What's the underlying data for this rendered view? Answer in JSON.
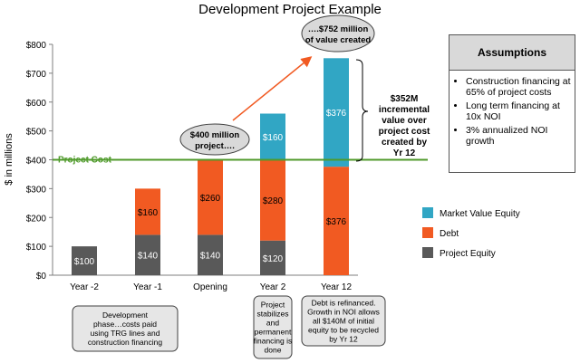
{
  "chart_data": {
    "type": "bar",
    "stacked": true,
    "title": "Development Project Example",
    "ylabel": "$ in millions",
    "ylim": [
      0,
      800
    ],
    "yticks": [
      0,
      100,
      200,
      300,
      400,
      500,
      600,
      700,
      800
    ],
    "ytick_labels": [
      "$0",
      "$100",
      "$200",
      "$300",
      "$400",
      "$500",
      "$600",
      "$700",
      "$800"
    ],
    "categories": [
      "Year -2",
      "Year -1",
      "Opening",
      "Year 2",
      "Year 12"
    ],
    "series": [
      {
        "name": "Project Equity",
        "color": "#595959",
        "values": [
          100,
          140,
          140,
          120,
          0
        ],
        "labels": [
          "$100",
          "$140",
          "$140",
          "$120",
          ""
        ]
      },
      {
        "name": "Debt",
        "color": "#f15a22",
        "values": [
          0,
          160,
          260,
          280,
          376
        ],
        "labels": [
          "",
          "$160",
          "$260",
          "$280",
          "$376"
        ]
      },
      {
        "name": "Market Value Equity",
        "color": "#31a6c4",
        "values": [
          0,
          0,
          0,
          160,
          376
        ],
        "labels": [
          "",
          "",
          "",
          "$160",
          "$376"
        ]
      }
    ],
    "legend_order": [
      "Market Value Equity",
      "Debt",
      "Project Equity"
    ],
    "legend_position": "right",
    "reference_line": {
      "label": "Project Cost",
      "value": 400,
      "color": "#4f9a2b"
    },
    "grid": false
  },
  "annotations": {
    "bubble_400": [
      "$400 million",
      "project…."
    ],
    "bubble_752": [
      "….$752 million",
      "of value created"
    ],
    "incremental": [
      "$352M",
      "incremental",
      "value over",
      "project cost",
      "created by",
      "Yr 12"
    ],
    "note_development": [
      "Development",
      "phase…costs paid",
      "using TRG lines and",
      "construction financing"
    ],
    "note_stabilizes": [
      "Project",
      "stabilizes",
      "and",
      "permanent",
      "financing is",
      "done"
    ],
    "note_refinanced": [
      "Debt is refinanced.",
      "Growth in NOI allows",
      "all $140M of initial",
      "equity to be recycled",
      "by Yr 12"
    ]
  },
  "assumptions": {
    "title": "Assumptions",
    "items": [
      "Construction financing at 65% of project costs",
      "Long term financing at 10x NOI",
      "3% annualized NOI growth"
    ]
  }
}
